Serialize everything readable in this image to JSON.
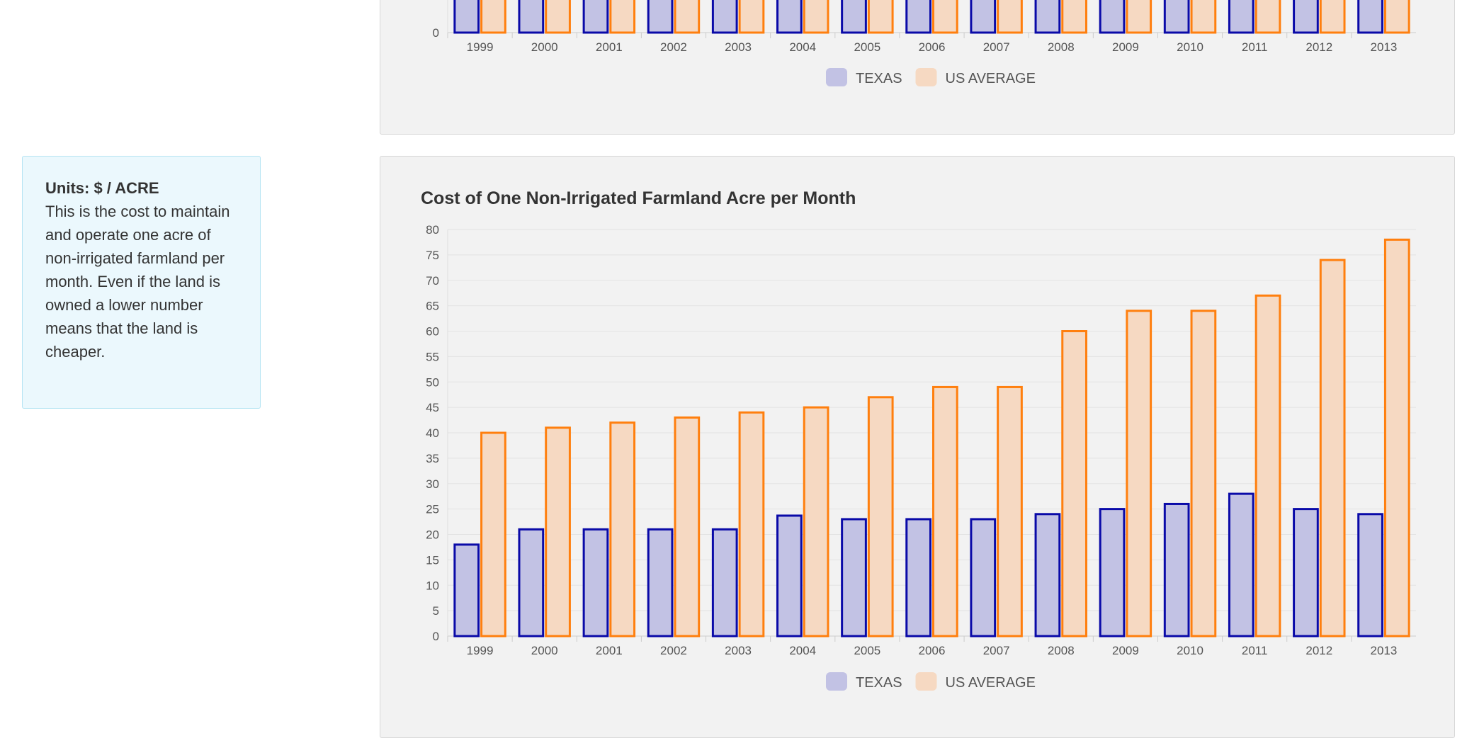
{
  "top_chart": {
    "type": "bar",
    "y_tick_visible": "0",
    "categories": [
      "1999",
      "2000",
      "2001",
      "2002",
      "2003",
      "2004",
      "2005",
      "2006",
      "2007",
      "2008",
      "2009",
      "2010",
      "2011",
      "2012",
      "2013"
    ],
    "legend": [
      "TEXAS",
      "US AVERAGE"
    ]
  },
  "info": {
    "units_label": "Units: $ / ACRE",
    "description": "This is the cost to maintain and operate one acre of non-irrigated farmland per month. Even if the land is owned a lower number means that the land is cheaper."
  },
  "chart_data": {
    "type": "bar",
    "title": "Cost of One Non-Irrigated Farmland Acre per Month",
    "xlabel": "",
    "ylabel": "",
    "ylim": [
      0,
      80
    ],
    "yticks": [
      "0",
      "5",
      "10",
      "15",
      "20",
      "25",
      "30",
      "35",
      "40",
      "45",
      "50",
      "55",
      "60",
      "65",
      "70",
      "75",
      "80"
    ],
    "grid": true,
    "legend_placement": "bottom",
    "categories": [
      "1999",
      "2000",
      "2001",
      "2002",
      "2003",
      "2004",
      "2005",
      "2006",
      "2007",
      "2008",
      "2009",
      "2010",
      "2011",
      "2012",
      "2013"
    ],
    "series": [
      {
        "name": "TEXAS",
        "values": [
          18,
          21,
          21,
          21,
          21,
          23.7,
          23,
          23,
          23,
          24,
          25,
          26,
          28,
          25,
          24
        ],
        "fill": "#c2c2e4",
        "stroke": "#0a0aa8"
      },
      {
        "name": "US AVERAGE",
        "values": [
          40,
          41,
          42,
          43,
          44,
          45,
          47,
          49,
          49,
          60,
          64,
          64,
          67,
          74,
          78
        ],
        "fill": "#f6d9c2",
        "stroke": "#ff7f0e"
      }
    ]
  }
}
